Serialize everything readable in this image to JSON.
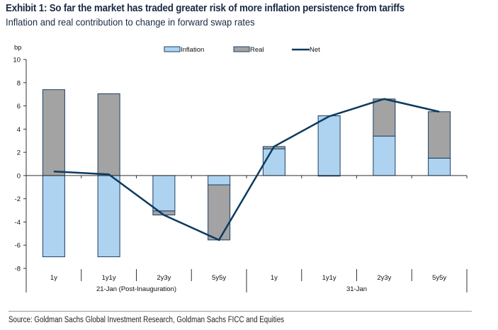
{
  "title": "Exhibit 1: So far the market has traded greater risk of more inflation persistence from tariffs",
  "subtitle": "Inflation and real contribution to change in forward swap rates",
  "source": "Source: Goldman Sachs Global Investment Research, Goldman Sachs FICC and Equities",
  "colors": {
    "inflation": "#aed3f0",
    "real": "#a3a3a3",
    "net": "#0d3a5e",
    "border": "#1b3f66"
  },
  "chart_data": {
    "type": "bar",
    "stacked": true,
    "ylabel": "bp",
    "ylim": [
      -8,
      10
    ],
    "yticks": [
      10,
      8,
      6,
      4,
      2,
      0,
      -2,
      -4,
      -6,
      -8
    ],
    "categories": [
      "1y",
      "1y1y",
      "2y3y",
      "5y5y",
      "1y",
      "1y1y",
      "2y3y",
      "5y5y"
    ],
    "groups": [
      {
        "label": "21-Jan (Post-Inauguration)",
        "count": 4
      },
      {
        "label": "31-Jan",
        "count": 4
      }
    ],
    "legend": [
      "Inflation",
      "Real",
      "Net"
    ],
    "legend_position": "top",
    "series": [
      {
        "name": "Inflation",
        "type": "bar",
        "values": [
          -7.0,
          -7.0,
          -3.05,
          -0.8,
          2.3,
          5.15,
          3.4,
          1.5
        ]
      },
      {
        "name": "Real",
        "type": "bar",
        "values": [
          7.4,
          7.05,
          -0.35,
          -4.75,
          0.2,
          -0.05,
          3.2,
          4.0
        ]
      },
      {
        "name": "Net",
        "type": "line",
        "values": [
          0.35,
          0.1,
          -3.4,
          -5.55,
          2.5,
          5.1,
          6.6,
          5.5
        ]
      }
    ]
  }
}
